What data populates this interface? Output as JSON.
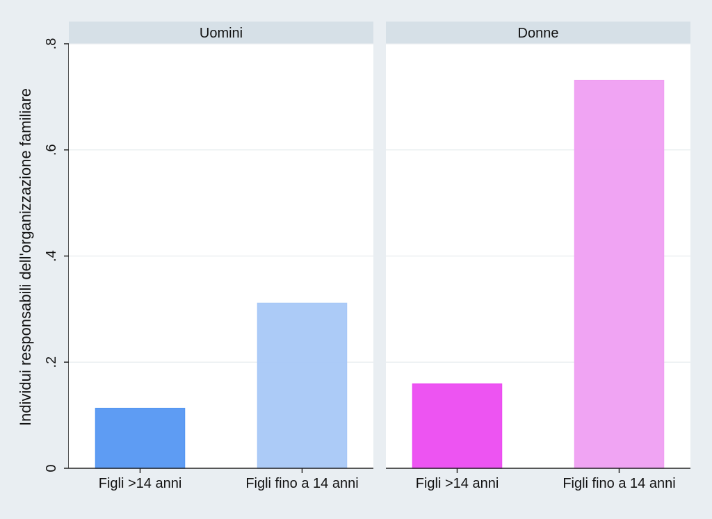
{
  "chart_data": {
    "type": "bar",
    "ylabel": "Individui responsabili dell'organizzazione familiare",
    "ylim": [
      0,
      0.8
    ],
    "yticks": [
      {
        "value": 0,
        "label": "0"
      },
      {
        "value": 0.2,
        "label": ".2"
      },
      {
        "value": 0.4,
        "label": ".4"
      },
      {
        "value": 0.6,
        "label": ".6"
      },
      {
        "value": 0.8,
        "label": ".8"
      }
    ],
    "grid": true,
    "panels": [
      {
        "title": "Uomini",
        "categories": [
          "Figli >14 anni",
          "Figli fino a 14 anni"
        ],
        "values": [
          0.113,
          0.311
        ],
        "colors": [
          "#5597f2",
          "#a8c8f7"
        ]
      },
      {
        "title": "Donne",
        "categories": [
          "Figli >14 anni",
          "Figli fino a 14 anni"
        ],
        "values": [
          0.159,
          0.731
        ],
        "colors": [
          "#ec4bf1",
          "#ef9ff2"
        ]
      }
    ]
  }
}
